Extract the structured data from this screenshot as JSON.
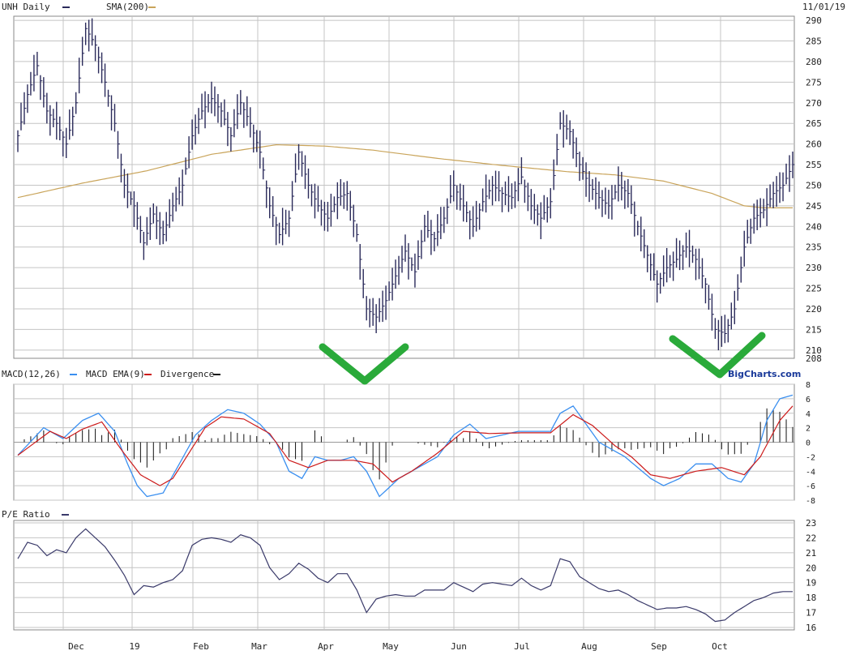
{
  "header": {
    "symbol_label": "UNH Daily",
    "sma_label": "SMA(200)",
    "date": "11/01/19"
  },
  "macd_header": {
    "macd_label": "MACD(12,26)",
    "ema_label": "MACD EMA(9)",
    "divergence_label": "Divergence"
  },
  "pe_header": {
    "label": "P/E Ratio"
  },
  "brand": "BigCharts.com",
  "colors": {
    "price": "#2a2a5a",
    "sma": "#c9a45a",
    "macd": "#3a8ff0",
    "ema": "#cc1a1a",
    "divergence": "#111111",
    "pe": "#3a3a6a",
    "grid": "#c4c4c4",
    "marker": "#2aaa3a"
  },
  "chart_data": [
    {
      "type": "line",
      "name": "UNH Daily",
      "x_ticks": [
        "Dec",
        "19",
        "Feb",
        "Mar",
        "Apr",
        "May",
        "Jun",
        "Jul",
        "Aug",
        "Sep",
        "Oct"
      ],
      "y_ticks": [
        208,
        210,
        215,
        220,
        225,
        230,
        235,
        240,
        245,
        250,
        255,
        260,
        265,
        270,
        275,
        280,
        285,
        290
      ],
      "ylim": [
        208,
        291
      ],
      "grid": true,
      "price_anchors": [
        [
          0,
          262
        ],
        [
          3,
          272
        ],
        [
          6,
          279
        ],
        [
          9,
          268
        ],
        [
          12,
          265
        ],
        [
          15,
          260
        ],
        [
          18,
          270
        ],
        [
          21,
          288
        ],
        [
          24,
          284
        ],
        [
          27,
          275
        ],
        [
          30,
          265
        ],
        [
          33,
          250
        ],
        [
          36,
          245
        ],
        [
          39,
          236
        ],
        [
          42,
          243
        ],
        [
          45,
          238
        ],
        [
          48,
          245
        ],
        [
          51,
          250
        ],
        [
          54,
          262
        ],
        [
          57,
          268
        ],
        [
          60,
          271
        ],
        [
          63,
          268
        ],
        [
          66,
          262
        ],
        [
          69,
          270
        ],
        [
          72,
          265
        ],
        [
          75,
          258
        ],
        [
          78,
          245
        ],
        [
          81,
          238
        ],
        [
          84,
          242
        ],
        [
          87,
          258
        ],
        [
          90,
          250
        ],
        [
          93,
          245
        ],
        [
          96,
          242
        ],
        [
          99,
          247
        ],
        [
          102,
          248
        ],
        [
          105,
          238
        ],
        [
          108,
          220
        ],
        [
          111,
          218
        ],
        [
          114,
          222
        ],
        [
          117,
          228
        ],
        [
          120,
          234
        ],
        [
          123,
          229
        ],
        [
          126,
          240
        ],
        [
          129,
          237
        ],
        [
          132,
          242
        ],
        [
          135,
          250
        ],
        [
          138,
          245
        ],
        [
          141,
          240
        ],
        [
          144,
          246
        ],
        [
          147,
          250
        ],
        [
          150,
          248
        ],
        [
          153,
          247
        ],
        [
          156,
          252
        ],
        [
          159,
          245
        ],
        [
          162,
          242
        ],
        [
          165,
          246
        ],
        [
          168,
          265
        ],
        [
          171,
          263
        ],
        [
          174,
          255
        ],
        [
          177,
          250
        ],
        [
          180,
          247
        ],
        [
          183,
          245
        ],
        [
          186,
          250
        ],
        [
          189,
          248
        ],
        [
          192,
          240
        ],
        [
          195,
          233
        ],
        [
          198,
          226
        ],
        [
          201,
          230
        ],
        [
          204,
          232
        ],
        [
          207,
          235
        ],
        [
          210,
          232
        ],
        [
          213,
          226
        ],
        [
          216,
          215
        ],
        [
          219,
          214
        ],
        [
          222,
          220
        ],
        [
          225,
          235
        ],
        [
          228,
          242
        ],
        [
          231,
          244
        ],
        [
          234,
          248
        ],
        [
          237,
          250
        ],
        [
          240,
          255
        ]
      ],
      "sma_anchors": [
        [
          0,
          247
        ],
        [
          20,
          250.5
        ],
        [
          40,
          253.5
        ],
        [
          60,
          257.5
        ],
        [
          80,
          259.8
        ],
        [
          95,
          259.5
        ],
        [
          110,
          258.5
        ],
        [
          130,
          256.5
        ],
        [
          150,
          254.8
        ],
        [
          170,
          253.3
        ],
        [
          185,
          252.5
        ],
        [
          200,
          251
        ],
        [
          215,
          248
        ],
        [
          225,
          245
        ],
        [
          231,
          244.5
        ],
        [
          240,
          244.5
        ]
      ],
      "volatility": 2.2
    },
    {
      "type": "line",
      "name": "MACD",
      "legend": [
        "MACD(12,26)",
        "MACD EMA(9)",
        "Divergence"
      ],
      "y_ticks": [
        -8,
        -6,
        -4,
        -2,
        0,
        2,
        4,
        6,
        8
      ],
      "ylim": [
        -8,
        8
      ],
      "grid": true,
      "macd_anchors": [
        [
          0,
          -1.8
        ],
        [
          8,
          2
        ],
        [
          14,
          0.5
        ],
        [
          20,
          3
        ],
        [
          25,
          4
        ],
        [
          30,
          1.5
        ],
        [
          34,
          -3
        ],
        [
          37,
          -6
        ],
        [
          40,
          -7.5
        ],
        [
          45,
          -7
        ],
        [
          50,
          -3
        ],
        [
          55,
          1
        ],
        [
          60,
          3
        ],
        [
          65,
          4.5
        ],
        [
          70,
          4
        ],
        [
          75,
          2.5
        ],
        [
          80,
          0
        ],
        [
          84,
          -4
        ],
        [
          88,
          -5
        ],
        [
          92,
          -2
        ],
        [
          96,
          -2.5
        ],
        [
          100,
          -2.5
        ],
        [
          104,
          -2
        ],
        [
          108,
          -4
        ],
        [
          112,
          -7.5
        ],
        [
          118,
          -5
        ],
        [
          124,
          -3.5
        ],
        [
          130,
          -2
        ],
        [
          135,
          1
        ],
        [
          140,
          2.5
        ],
        [
          145,
          0.5
        ],
        [
          150,
          1
        ],
        [
          155,
          1.5
        ],
        [
          160,
          1.5
        ],
        [
          165,
          1.5
        ],
        [
          168,
          4
        ],
        [
          172,
          5
        ],
        [
          176,
          2.5
        ],
        [
          180,
          0
        ],
        [
          184,
          -1
        ],
        [
          188,
          -2
        ],
        [
          192,
          -3.5
        ],
        [
          196,
          -5
        ],
        [
          200,
          -6
        ],
        [
          205,
          -5
        ],
        [
          210,
          -3
        ],
        [
          215,
          -3
        ],
        [
          220,
          -5
        ],
        [
          224,
          -5.5
        ],
        [
          228,
          -3
        ],
        [
          232,
          3
        ],
        [
          236,
          6
        ],
        [
          240,
          6.5
        ]
      ],
      "ema_anchors": [
        [
          0,
          -1.8
        ],
        [
          10,
          1.5
        ],
        [
          15,
          0.5
        ],
        [
          20,
          1.8
        ],
        [
          26,
          2.8
        ],
        [
          32,
          -1
        ],
        [
          38,
          -4.5
        ],
        [
          44,
          -6
        ],
        [
          48,
          -5
        ],
        [
          53,
          -1.5
        ],
        [
          58,
          2
        ],
        [
          63,
          3.5
        ],
        [
          70,
          3.2
        ],
        [
          78,
          1.2
        ],
        [
          84,
          -2.5
        ],
        [
          90,
          -3.5
        ],
        [
          96,
          -2.5
        ],
        [
          104,
          -2.5
        ],
        [
          110,
          -3
        ],
        [
          116,
          -5.5
        ],
        [
          122,
          -4
        ],
        [
          130,
          -1.5
        ],
        [
          138,
          1.5
        ],
        [
          146,
          1.2
        ],
        [
          156,
          1.3
        ],
        [
          165,
          1.3
        ],
        [
          172,
          3.8
        ],
        [
          178,
          2.3
        ],
        [
          185,
          -0.5
        ],
        [
          190,
          -2
        ],
        [
          196,
          -4.5
        ],
        [
          202,
          -5
        ],
        [
          210,
          -4
        ],
        [
          218,
          -3.5
        ],
        [
          225,
          -4.5
        ],
        [
          230,
          -2
        ],
        [
          236,
          3
        ],
        [
          240,
          5
        ]
      ]
    },
    {
      "type": "line",
      "name": "P/E Ratio",
      "y_ticks": [
        16,
        17,
        18,
        19,
        20,
        21,
        22,
        23
      ],
      "ylim": [
        16,
        23
      ],
      "grid": true,
      "pe_anchors": [
        [
          0,
          20.6
        ],
        [
          3,
          21.7
        ],
        [
          6,
          21.5
        ],
        [
          9,
          20.8
        ],
        [
          12,
          21.2
        ],
        [
          15,
          21.0
        ],
        [
          18,
          22.0
        ],
        [
          21,
          22.6
        ],
        [
          24,
          22.0
        ],
        [
          27,
          21.4
        ],
        [
          30,
          20.5
        ],
        [
          33,
          19.5
        ],
        [
          36,
          18.2
        ],
        [
          39,
          18.8
        ],
        [
          42,
          18.7
        ],
        [
          45,
          19.0
        ],
        [
          48,
          19.2
        ],
        [
          51,
          19.8
        ],
        [
          54,
          21.5
        ],
        [
          57,
          21.9
        ],
        [
          60,
          22.0
        ],
        [
          63,
          21.9
        ],
        [
          66,
          21.7
        ],
        [
          69,
          22.2
        ],
        [
          72,
          22.0
        ],
        [
          75,
          21.5
        ],
        [
          78,
          20.0
        ],
        [
          81,
          19.2
        ],
        [
          84,
          19.6
        ],
        [
          87,
          20.3
        ],
        [
          90,
          19.9
        ],
        [
          93,
          19.3
        ],
        [
          96,
          19.0
        ],
        [
          99,
          19.6
        ],
        [
          102,
          19.6
        ],
        [
          105,
          18.5
        ],
        [
          108,
          17.0
        ],
        [
          111,
          17.9
        ],
        [
          114,
          18.1
        ],
        [
          117,
          18.2
        ],
        [
          120,
          18.1
        ],
        [
          123,
          18.1
        ],
        [
          126,
          18.5
        ],
        [
          129,
          18.5
        ],
        [
          132,
          18.5
        ],
        [
          135,
          19.0
        ],
        [
          138,
          18.7
        ],
        [
          141,
          18.4
        ],
        [
          144,
          18.9
        ],
        [
          147,
          19.0
        ],
        [
          150,
          18.9
        ],
        [
          153,
          18.8
        ],
        [
          156,
          19.3
        ],
        [
          159,
          18.8
        ],
        [
          162,
          18.5
        ],
        [
          165,
          18.8
        ],
        [
          168,
          20.6
        ],
        [
          171,
          20.4
        ],
        [
          174,
          19.4
        ],
        [
          177,
          19.0
        ],
        [
          180,
          18.6
        ],
        [
          183,
          18.4
        ],
        [
          186,
          18.5
        ],
        [
          189,
          18.2
        ],
        [
          192,
          17.8
        ],
        [
          195,
          17.5
        ],
        [
          198,
          17.2
        ],
        [
          201,
          17.3
        ],
        [
          204,
          17.3
        ],
        [
          207,
          17.4
        ],
        [
          210,
          17.2
        ],
        [
          213,
          16.9
        ],
        [
          216,
          16.4
        ],
        [
          219,
          16.5
        ],
        [
          222,
          17.0
        ],
        [
          225,
          17.4
        ],
        [
          228,
          17.8
        ],
        [
          231,
          18.0
        ],
        [
          234,
          18.3
        ],
        [
          237,
          18.4
        ],
        [
          240,
          18.4
        ]
      ]
    }
  ]
}
